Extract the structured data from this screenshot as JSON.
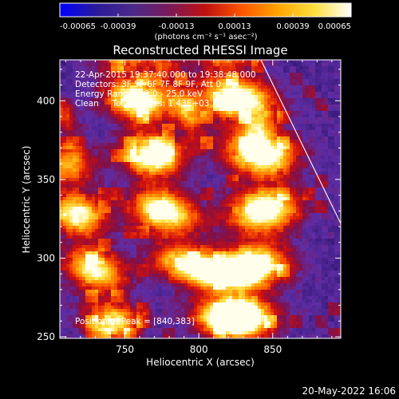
{
  "chart_data": {
    "type": "heatmap",
    "title": "Reconstructed RHESSI Image",
    "xlabel": "Heliocentric X (arcsec)",
    "ylabel": "Heliocentric Y (arcsec)",
    "xlim": [
      706,
      896
    ],
    "ylim": [
      249,
      426
    ],
    "xticks": [
      {
        "value": 750,
        "label": "750"
      },
      {
        "value": 800,
        "label": "800"
      },
      {
        "value": 850,
        "label": "850"
      }
    ],
    "yticks": [
      {
        "value": 250,
        "label": "250"
      },
      {
        "value": 300,
        "label": "300"
      },
      {
        "value": 350,
        "label": "350"
      },
      {
        "value": 400,
        "label": "400"
      }
    ],
    "colorbar": {
      "range": [
        -0.00065,
        0.00065
      ],
      "unit_label": "(photons cm⁻² s⁻¹ asec⁻²)",
      "ticks": [
        {
          "value": -0.00065,
          "label": "-0.00065"
        },
        {
          "value": -0.00039,
          "label": "-0.00039"
        },
        {
          "value": -0.00013,
          "label": "-0.00013"
        },
        {
          "value": 0.00013,
          "label": "0.00013"
        },
        {
          "value": 0.00039,
          "label": "0.00039"
        },
        {
          "value": 0.00065,
          "label": "0.00065"
        }
      ],
      "colors": [
        "#0000ff",
        "#2a1a9a",
        "#4a2a8a",
        "#7a1a5a",
        "#c0100f",
        "#ff5500",
        "#ffa500",
        "#ffe040",
        "#ffffff"
      ]
    },
    "annotations": [
      "22-Apr-2015 19:37:40.000 to 19:38:48.000",
      "Detectors: 3F 5F 6F 7F 8F 9F, Att 0",
      "Energy Range: 12.0 - 25.0 keV",
      "Clean     Total counts: 1.43E+03",
      "Position of Peak = [840,383]"
    ],
    "peak": {
      "x": 840,
      "y": 383
    },
    "ridges": [
      {
        "points": [
          [
            818,
            420
          ],
          [
            830,
            390
          ],
          [
            842,
            372
          ],
          [
            846,
            340
          ],
          [
            838,
            300
          ],
          [
            828,
            262
          ]
        ],
        "width": 16,
        "strength": 1.0
      },
      {
        "points": [
          [
            752,
            420
          ],
          [
            760,
            395
          ],
          [
            768,
            370
          ],
          [
            772,
            340
          ],
          [
            784,
            312
          ],
          [
            800,
            292
          ],
          [
            818,
            275
          ]
        ],
        "width": 14,
        "strength": 0.95
      },
      {
        "points": [
          [
            712,
            350
          ],
          [
            720,
            318
          ],
          [
            730,
            292
          ],
          [
            742,
            262
          ]
        ],
        "width": 13,
        "strength": 0.85
      },
      {
        "points": [
          [
            778,
            418
          ],
          [
            790,
            400
          ],
          [
            798,
            378
          ]
        ],
        "width": 7,
        "strength": 0.55
      },
      {
        "points": [
          [
            706,
            395
          ],
          [
            714,
            372
          ]
        ],
        "width": 6,
        "strength": 0.45
      }
    ],
    "chord": {
      "points": [
        [
          842,
          426
        ],
        [
          896,
          322
        ]
      ]
    },
    "grid": false
  },
  "footer": {
    "date": "20-May-2022 16:06"
  }
}
